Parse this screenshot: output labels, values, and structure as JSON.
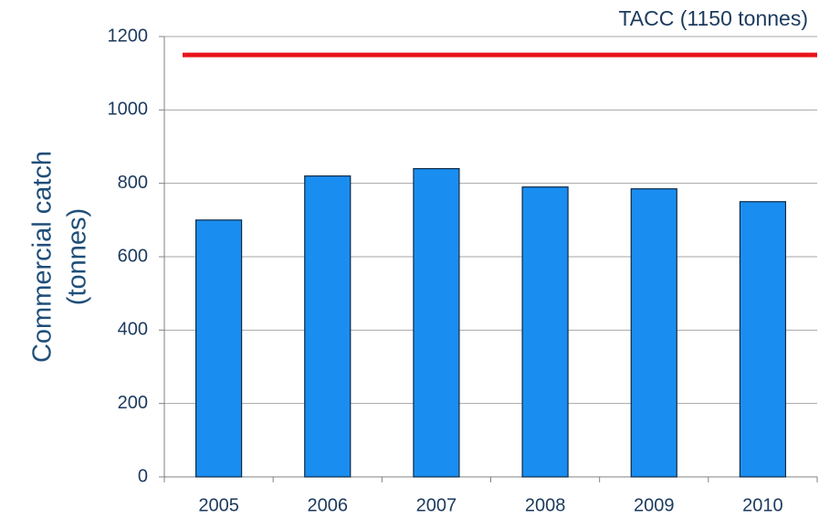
{
  "chart_data": {
    "type": "bar",
    "y_label": [
      "Commercial catch",
      "(tonnes)"
    ],
    "categories": [
      "2005",
      "2006",
      "2007",
      "2008",
      "2009",
      "2010"
    ],
    "values": [
      700,
      820,
      840,
      790,
      785,
      750
    ],
    "color": "#1a8ef0",
    "ylim": [
      0,
      1200
    ],
    "yticks": [
      0,
      200,
      400,
      600,
      800,
      1000,
      1200
    ],
    "grid": true,
    "reference_line": {
      "value": 1150,
      "label": "TACC (1150 tonnes)",
      "color": "#e8141b"
    }
  }
}
